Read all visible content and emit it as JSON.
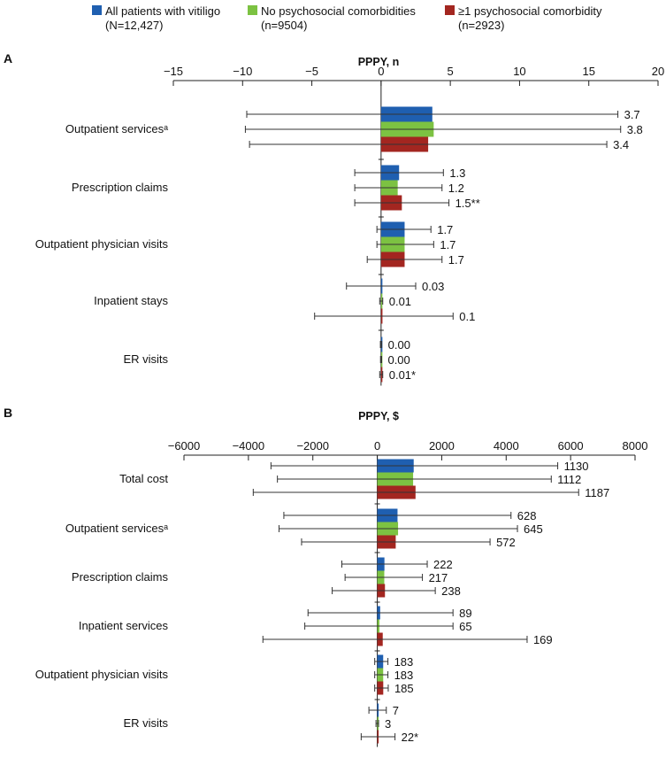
{
  "legend": [
    {
      "name": "All patients with vitiligo",
      "n": "(N=12,427)",
      "color": "#1f5fb0"
    },
    {
      "name": "No psychosocial comorbidities",
      "n": "(n=9504)",
      "color": "#7cc242"
    },
    {
      "name": "≥1 psychosocial comorbidity",
      "n": "(n=2923)",
      "color": "#a32620"
    }
  ],
  "chart_data": [
    {
      "type": "bar",
      "orientation": "horizontal",
      "panel": "A",
      "title": "PPPY, n",
      "xlim": [
        -15,
        20
      ],
      "ticks": [
        -15,
        -10,
        -5,
        0,
        5,
        10,
        15,
        20
      ],
      "tick_labels": [
        "−15",
        "−10",
        "−5",
        "0",
        "5",
        "10",
        "15",
        "20"
      ],
      "categories": [
        "Outpatient servicesᵃ",
        "Prescription claims",
        "Outpatient physician visits",
        "Inpatient stays",
        "ER visits"
      ],
      "series": [
        {
          "name": "All patients with vitiligo",
          "values": [
            3.7,
            1.3,
            1.7,
            0.03,
            0.0
          ],
          "err_low": [
            -9.7,
            -1.9,
            -0.3,
            -2.5,
            -0.05
          ],
          "err_high": [
            17.1,
            4.5,
            3.6,
            2.5,
            0.05
          ],
          "labels": [
            "3.7",
            "1.3",
            "1.7",
            "0.03",
            "0.00"
          ]
        },
        {
          "name": "No psychosocial comorbidities",
          "values": [
            3.8,
            1.2,
            1.7,
            0.01,
            0.0
          ],
          "err_low": [
            -9.8,
            -1.9,
            -0.3,
            -0.1,
            -0.04
          ],
          "err_high": [
            17.3,
            4.4,
            3.8,
            0.12,
            0.04
          ],
          "labels": [
            "3.8",
            "1.2",
            "1.7",
            "0.01",
            "0.00"
          ]
        },
        {
          "name": "≥1 psychosocial comorbidity",
          "values": [
            3.4,
            1.5,
            1.7,
            0.1,
            0.01
          ],
          "err_low": [
            -9.5,
            -1.9,
            -1.0,
            -4.8,
            -0.1
          ],
          "err_high": [
            16.3,
            4.9,
            4.4,
            5.2,
            0.12
          ],
          "labels": [
            "3.4",
            "1.5**",
            "1.7",
            "0.1",
            "0.01*"
          ]
        }
      ]
    },
    {
      "type": "bar",
      "orientation": "horizontal",
      "panel": "B",
      "title": "PPPY, $",
      "xlim": [
        -6000,
        8000
      ],
      "ticks": [
        -6000,
        -4000,
        -2000,
        0,
        2000,
        4000,
        6000,
        8000
      ],
      "tick_labels": [
        "−6000",
        "−4000",
        "−2000",
        "0",
        "2000",
        "4000",
        "6000",
        "8000"
      ],
      "categories": [
        "Total cost",
        "Outpatient servicesᵃ",
        "Prescription claims",
        "Inpatient services",
        "Outpatient physician visits",
        "ER visits"
      ],
      "series": [
        {
          "name": "All patients with vitiligo",
          "values": [
            1130,
            628,
            222,
            89,
            183,
            7
          ],
          "err_low": [
            -3300,
            -2900,
            -1100,
            -2150,
            -80,
            -260
          ],
          "err_high": [
            5600,
            4150,
            1550,
            2350,
            330,
            280
          ],
          "labels": [
            "1130",
            "628",
            "222",
            "89",
            "183",
            "7"
          ]
        },
        {
          "name": "No psychosocial comorbidities",
          "values": [
            1112,
            645,
            217,
            65,
            183,
            3
          ],
          "err_low": [
            -3100,
            -3050,
            -1000,
            -2250,
            -80,
            -40
          ],
          "err_high": [
            5400,
            4350,
            1400,
            2350,
            330,
            40
          ],
          "labels": [
            "1112",
            "645",
            "217",
            "65",
            "183",
            "3"
          ]
        },
        {
          "name": "≥1 psychosocial comorbidity",
          "values": [
            1187,
            572,
            238,
            169,
            185,
            22
          ],
          "err_low": [
            -3850,
            -2350,
            -1400,
            -3550,
            -80,
            -500
          ],
          "err_high": [
            6250,
            3500,
            1800,
            4650,
            340,
            550
          ],
          "labels": [
            "1187",
            "572",
            "238",
            "169",
            "185",
            "22*"
          ]
        }
      ]
    }
  ]
}
